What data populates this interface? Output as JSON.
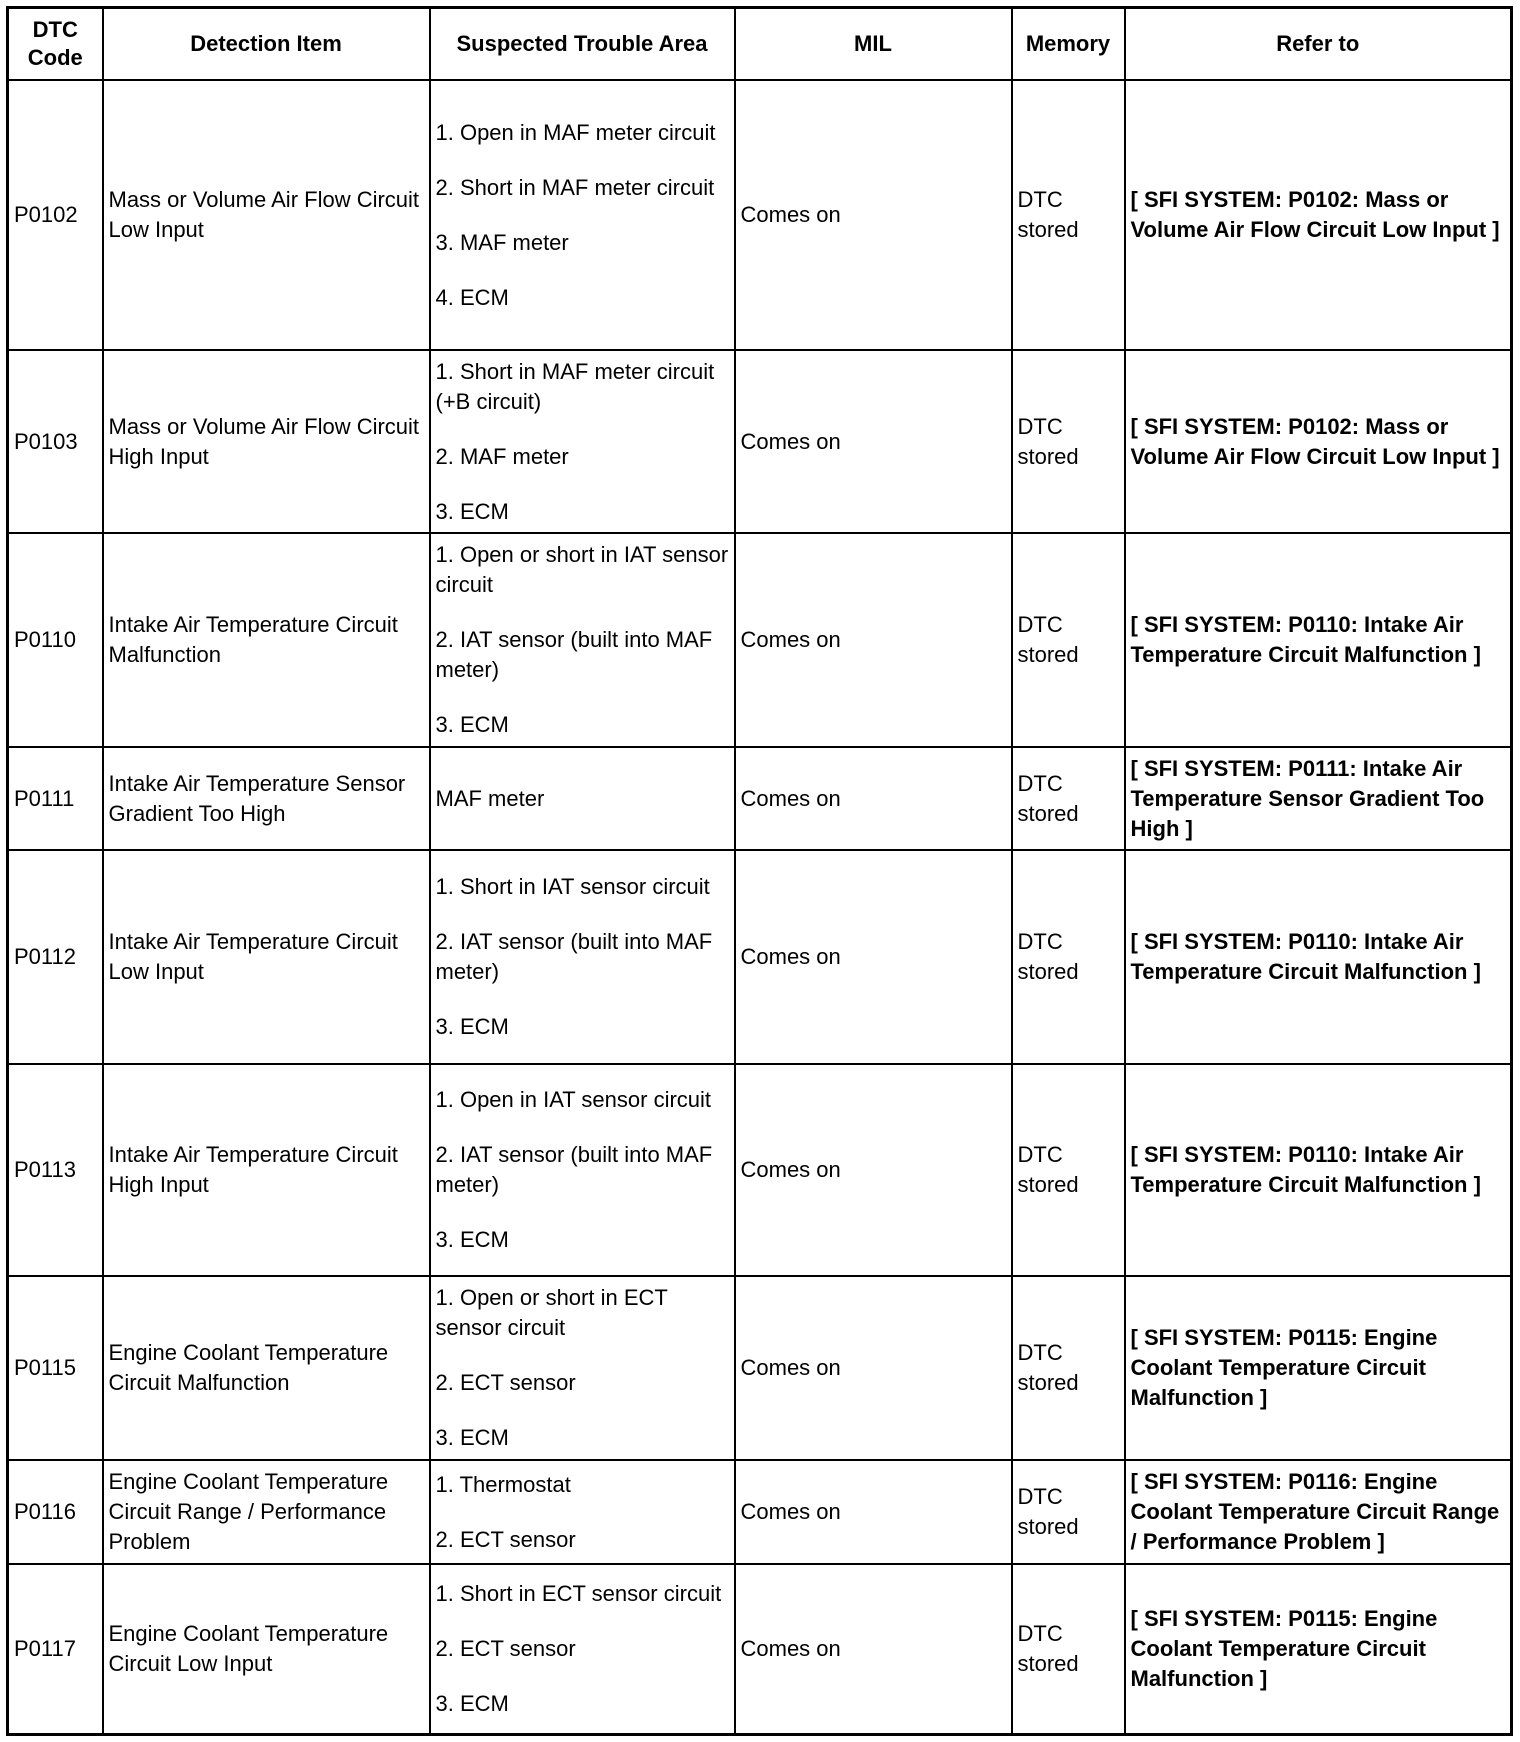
{
  "headers": [
    "DTC Code",
    "Detection Item",
    "Suspected Trouble Area",
    "MIL",
    "Memory",
    "Refer to"
  ],
  "rows": [
    {
      "code": "P0102",
      "item": "Mass or Volume Air Flow Circuit Low Input",
      "areas": [
        "1. Open in MAF meter circuit",
        "2. Short in MAF meter circuit",
        "3. MAF meter",
        "4. ECM"
      ],
      "mil": "Comes on",
      "memory": "DTC stored",
      "refer": "[ SFI SYSTEM: P0102: Mass or Volume Air Flow Circuit Low Input ]"
    },
    {
      "code": "P0103",
      "item": "Mass or Volume Air Flow Circuit High Input",
      "areas": [
        "1. Short in MAF meter circuit (+B circuit)",
        "2. MAF meter",
        "3. ECM"
      ],
      "mil": "Comes on",
      "memory": "DTC stored",
      "refer": "[ SFI SYSTEM: P0102: Mass or Volume Air Flow Circuit Low Input ]"
    },
    {
      "code": "P0110",
      "item": "Intake Air Temperature Circuit Malfunction",
      "areas": [
        "1. Open or short in IAT sensor circuit",
        "2. IAT sensor (built into MAF meter)",
        "3. ECM"
      ],
      "mil": "Comes on",
      "memory": "DTC stored",
      "refer": "[ SFI SYSTEM: P0110: Intake Air Temperature Circuit Malfunction ]"
    },
    {
      "code": "P0111",
      "item": "Intake Air Temperature Sensor Gradient Too High",
      "areas": [
        "MAF meter"
      ],
      "mil": "Comes on",
      "memory": "DTC stored",
      "refer": "[ SFI SYSTEM: P0111: Intake Air Temperature Sensor Gradient Too High ]"
    },
    {
      "code": "P0112",
      "item": "Intake Air Temperature Circuit Low Input",
      "areas": [
        "1. Short in IAT sensor circuit",
        "2. IAT sensor (built into MAF meter)",
        "3. ECM"
      ],
      "mil": "Comes on",
      "memory": "DTC stored",
      "refer": "[ SFI SYSTEM: P0110: Intake Air Temperature Circuit Malfunction ]"
    },
    {
      "code": "P0113",
      "item": "Intake Air Temperature Circuit High Input",
      "areas": [
        "1. Open in IAT sensor circuit",
        "2. IAT sensor (built into MAF meter)",
        "3. ECM"
      ],
      "mil": "Comes on",
      "memory": "DTC stored",
      "refer": "[ SFI SYSTEM: P0110: Intake Air Temperature Circuit Malfunction ]"
    },
    {
      "code": "P0115",
      "item": "Engine Coolant Temperature Circuit Malfunction",
      "areas": [
        "1. Open or short in ECT sensor circuit",
        "2. ECT sensor",
        "3. ECM"
      ],
      "mil": "Comes on",
      "memory": "DTC stored",
      "refer": "[ SFI SYSTEM: P0115: Engine Coolant Temperature Circuit Malfunction ]"
    },
    {
      "code": "P0116",
      "item": "Engine Coolant Temperature Circuit Range / Performance Problem",
      "areas": [
        "1. Thermostat",
        "2. ECT sensor"
      ],
      "mil": "Comes on",
      "memory": "DTC stored",
      "refer": "[ SFI SYSTEM: P0116: Engine Coolant Temperature Circuit Range / Performance Problem ]"
    },
    {
      "code": "P0117",
      "item": "Engine Coolant Temperature Circuit Low Input",
      "areas": [
        "1. Short in ECT sensor circuit",
        "2. ECT sensor",
        "3. ECM"
      ],
      "mil": "Comes on",
      "memory": "DTC stored",
      "refer": "[ SFI SYSTEM: P0115: Engine Coolant Temperature Circuit Malfunction ]"
    }
  ]
}
